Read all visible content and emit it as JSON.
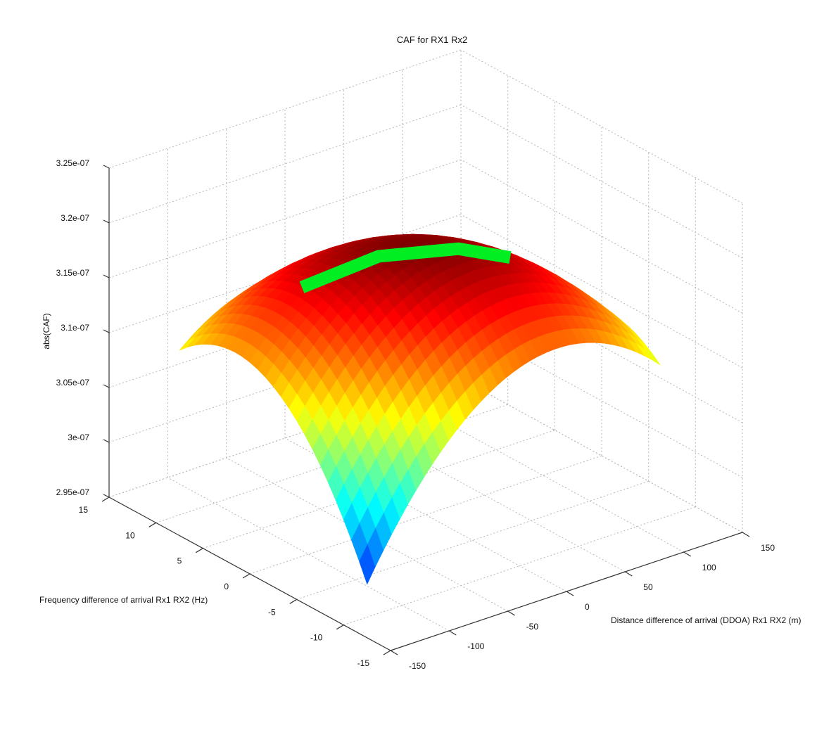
{
  "chart_data": {
    "type": "surface",
    "title": "CAF for RX1 Rx2",
    "xlabel": "Distance difference of arrival (DDOA) Rx1 RX2 (m)",
    "ylabel": "Frequency difference of arrival Rx1 RX2 (Hz)",
    "zlabel": "abs(CAF)",
    "xlim": [
      -150,
      150
    ],
    "ylim": [
      -15,
      15
    ],
    "zlim": [
      2.95e-07,
      3.25e-07
    ],
    "x_ticks": [
      "-150",
      "-100",
      "-50",
      "0",
      "50",
      "100",
      "150"
    ],
    "y_ticks": [
      "-15",
      "-10",
      "-5",
      "0",
      "5",
      "10",
      "15"
    ],
    "z_ticks": [
      "2.95e-07",
      "3e-07",
      "3.05e-07",
      "3.1e-07",
      "3.15e-07",
      "3.2e-07",
      "3.25e-07"
    ],
    "grid": true,
    "colormap": "jet",
    "surface": {
      "x_range": [
        -130,
        120
      ],
      "y_range": [
        -10,
        10
      ],
      "corner_values": {
        "x_min_y_max": 3.1e-07,
        "x_min_y_min": 2.98e-07,
        "x_max_y_max": 2.96e-07
      },
      "peak": {
        "x": -10,
        "y": 0,
        "z": 3.2e-07
      }
    },
    "highlight_ridge": {
      "color": "#00ee22",
      "points": [
        {
          "x": -100,
          "y": 0.7,
          "z": 3.19e-07
        },
        {
          "x": -40,
          "y": 0,
          "z": 3.2e-07
        },
        {
          "x": 20,
          "y": -1,
          "z": 3.19e-07
        },
        {
          "x": 60,
          "y": -1.5,
          "z": 3.17e-07
        }
      ]
    }
  }
}
